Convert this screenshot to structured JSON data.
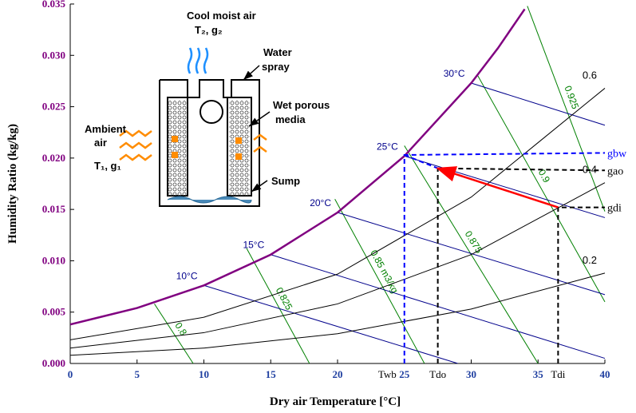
{
  "chart_data": {
    "type": "line",
    "x_label": "Dry air Temperature [°C]",
    "y_label": "Humidity Ratio (kg/kg)",
    "xlim": [
      0,
      40
    ],
    "ylim": [
      0,
      0.035
    ],
    "xticks": [
      0,
      5,
      10,
      15,
      20,
      25,
      30,
      35,
      40
    ],
    "yticks": [
      {
        "value": 0,
        "label": "0.000"
      },
      0.005,
      {
        "value": 0.01,
        "label": "0.010"
      },
      0.015,
      {
        "value": 0.02,
        "label": "0.020"
      },
      0.025,
      {
        "value": 0.03,
        "label": "0.030"
      },
      0.035
    ],
    "saturation": {
      "color": "#800080",
      "x": [
        0,
        5,
        10,
        15,
        20,
        25,
        30,
        32,
        34
      ],
      "values": [
        0.0038,
        0.0054,
        0.0076,
        0.0106,
        0.0147,
        0.0202,
        0.0273,
        0.0307,
        0.0345
      ]
    },
    "rh_lines": [
      {
        "label": "0.2",
        "color": "#000000",
        "x": [
          0,
          10,
          20,
          30,
          40
        ],
        "values": [
          0.0008,
          0.0015,
          0.0029,
          0.0053,
          0.0088
        ]
      },
      {
        "label": "0.4",
        "color": "#000000",
        "x": [
          0,
          10,
          20,
          30,
          40
        ],
        "values": [
          0.0015,
          0.003,
          0.0058,
          0.0106,
          0.0176
        ]
      },
      {
        "label": "0.6",
        "color": "#000000",
        "x": [
          0,
          10,
          20,
          30,
          35,
          40
        ],
        "values": [
          0.0023,
          0.0045,
          0.0087,
          0.0162,
          0.0215,
          0.0268
        ]
      }
    ],
    "wet_bulb_lines": [
      {
        "label": "10°C",
        "color": "#00008b",
        "x": [
          10,
          29
        ],
        "values": [
          0.0076,
          0
        ]
      },
      {
        "label": "15°C",
        "color": "#00008b",
        "x": [
          15,
          40
        ],
        "values": [
          0.0106,
          0.0005
        ]
      },
      {
        "label": "20°C",
        "color": "#00008b",
        "x": [
          20,
          40
        ],
        "values": [
          0.0147,
          0.0067
        ]
      },
      {
        "label": "25°C",
        "color": "#00008b",
        "x": [
          25,
          40
        ],
        "values": [
          0.0202,
          0.0142
        ]
      },
      {
        "label": "30°C",
        "color": "#00008b",
        "x": [
          30,
          40
        ],
        "values": [
          0.0273,
          0.0232
        ]
      }
    ],
    "volume_lines": [
      {
        "label": "0.8",
        "color": "#008000",
        "x": [
          9.2,
          6.3
        ],
        "values": [
          0,
          0.0058
        ]
      },
      {
        "label": "0.825",
        "color": "#008000",
        "x": [
          17.9,
          13.2
        ],
        "values": [
          0,
          0.0112
        ]
      },
      {
        "label": "0.85 m3/kg",
        "color": "#008000",
        "x": [
          26.5,
          19.8
        ],
        "values": [
          0,
          0.016
        ]
      },
      {
        "label": "0.875",
        "color": "#008000",
        "x": [
          35,
          25
        ],
        "values": [
          0,
          0.0212
        ]
      },
      {
        "label": "0.9",
        "color": "#008000",
        "x": [
          40,
          30.5
        ],
        "values": [
          0.006,
          0.028
        ]
      },
      {
        "label": "0.925",
        "color": "#008000",
        "x": [
          40,
          34.2
        ],
        "values": [
          0.0148,
          0.0348
        ]
      }
    ],
    "guides": [
      {
        "label": "gbw",
        "color": "#0000ff",
        "x": [
          25,
          25,
          40
        ],
        "values": [
          0,
          0.0203,
          0.0205
        ]
      },
      {
        "label": "gao",
        "color": "#000000",
        "x": [
          27.5,
          27.5,
          40
        ],
        "values": [
          0,
          0.019,
          0.0188
        ]
      },
      {
        "label": "gdi",
        "color": "#000000",
        "x": [
          36.5,
          36.5,
          40
        ],
        "values": [
          0,
          0.0152,
          0.0152
        ]
      }
    ],
    "connector": {
      "color": "#0000ff",
      "x": [
        25,
        27.5
      ],
      "values": [
        0.0203,
        0.019
      ]
    },
    "arrow": {
      "color": "#ff0000",
      "x": [
        36.5,
        27.5
      ],
      "values": [
        0.0152,
        0.019
      ]
    },
    "x_markers": [
      {
        "label": "Twb",
        "value": 25
      },
      {
        "label": "Tdo",
        "value": 27.5
      },
      {
        "label": "Tdi",
        "value": 36.5
      }
    ]
  },
  "inset": {
    "labels": [
      "Cool moist  air",
      "T₂, g₂",
      "Water",
      "spray",
      "Wet porous",
      "media",
      "Ambient",
      "air",
      "T₁, g₁",
      "Sump"
    ]
  }
}
